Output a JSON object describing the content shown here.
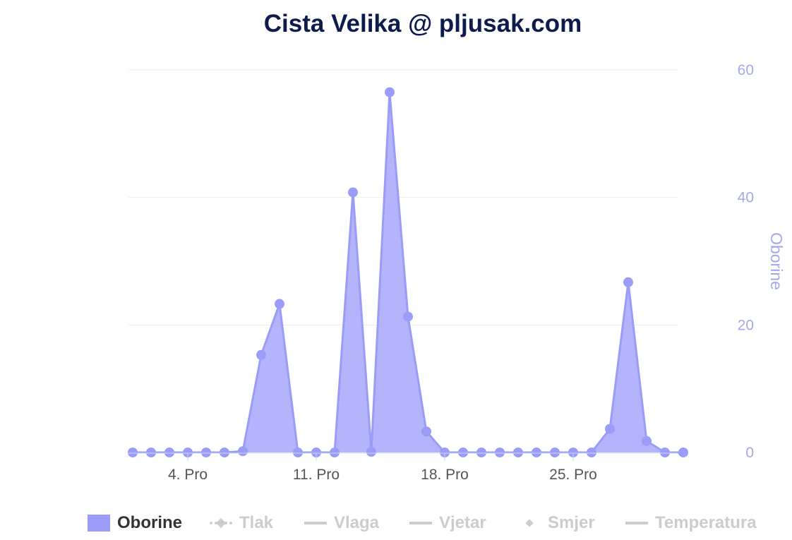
{
  "title": "Cista Velika @ pljusak.com",
  "colors": {
    "series": "#9a9cf8",
    "area": "#b3b4fc",
    "axis_text": "#a6a7e8",
    "tick_text": "#555555",
    "title": "#0d1b4d",
    "inactive": "#cccccc"
  },
  "chart_data": {
    "type": "area",
    "title": "Cista Velika @ pljusak.com",
    "x": [
      1,
      2,
      3,
      4,
      5,
      6,
      7,
      8,
      9,
      10,
      11,
      12,
      13,
      14,
      15,
      16,
      17,
      18,
      19,
      20,
      21,
      22,
      23,
      24,
      25,
      26,
      27,
      28,
      29,
      30,
      31
    ],
    "x_ticks": [
      {
        "x": 4,
        "label": "4. Pro"
      },
      {
        "x": 11,
        "label": "11. Pro"
      },
      {
        "x": 18,
        "label": "18. Pro"
      },
      {
        "x": 25,
        "label": "25. Pro"
      }
    ],
    "y_axis": {
      "label": "Oborine",
      "side": "right",
      "ticks": [
        0,
        20,
        40,
        60
      ],
      "ylim": [
        0,
        60
      ]
    },
    "grid": true,
    "series": [
      {
        "name": "Oborine",
        "values": [
          0,
          0,
          0,
          0,
          0,
          0,
          0.2,
          15.3,
          23.3,
          0,
          0,
          0,
          40.8,
          0.1,
          56.5,
          21.3,
          3.3,
          0,
          0,
          0,
          0,
          0,
          0,
          0,
          0,
          0,
          3.7,
          26.7,
          1.8,
          0,
          0
        ]
      }
    ],
    "legend_placement": "bottom"
  },
  "legend": [
    {
      "label": "Oborine",
      "symbol": "box",
      "active": true
    },
    {
      "label": "Tlak",
      "symbol": "dash-diamond",
      "active": false
    },
    {
      "label": "Vlaga",
      "symbol": "line",
      "active": false
    },
    {
      "label": "Vjetar",
      "symbol": "line",
      "active": false
    },
    {
      "label": "Smjer",
      "symbol": "diamond",
      "active": false
    },
    {
      "label": "Temperatura",
      "symbol": "line",
      "active": false
    }
  ]
}
